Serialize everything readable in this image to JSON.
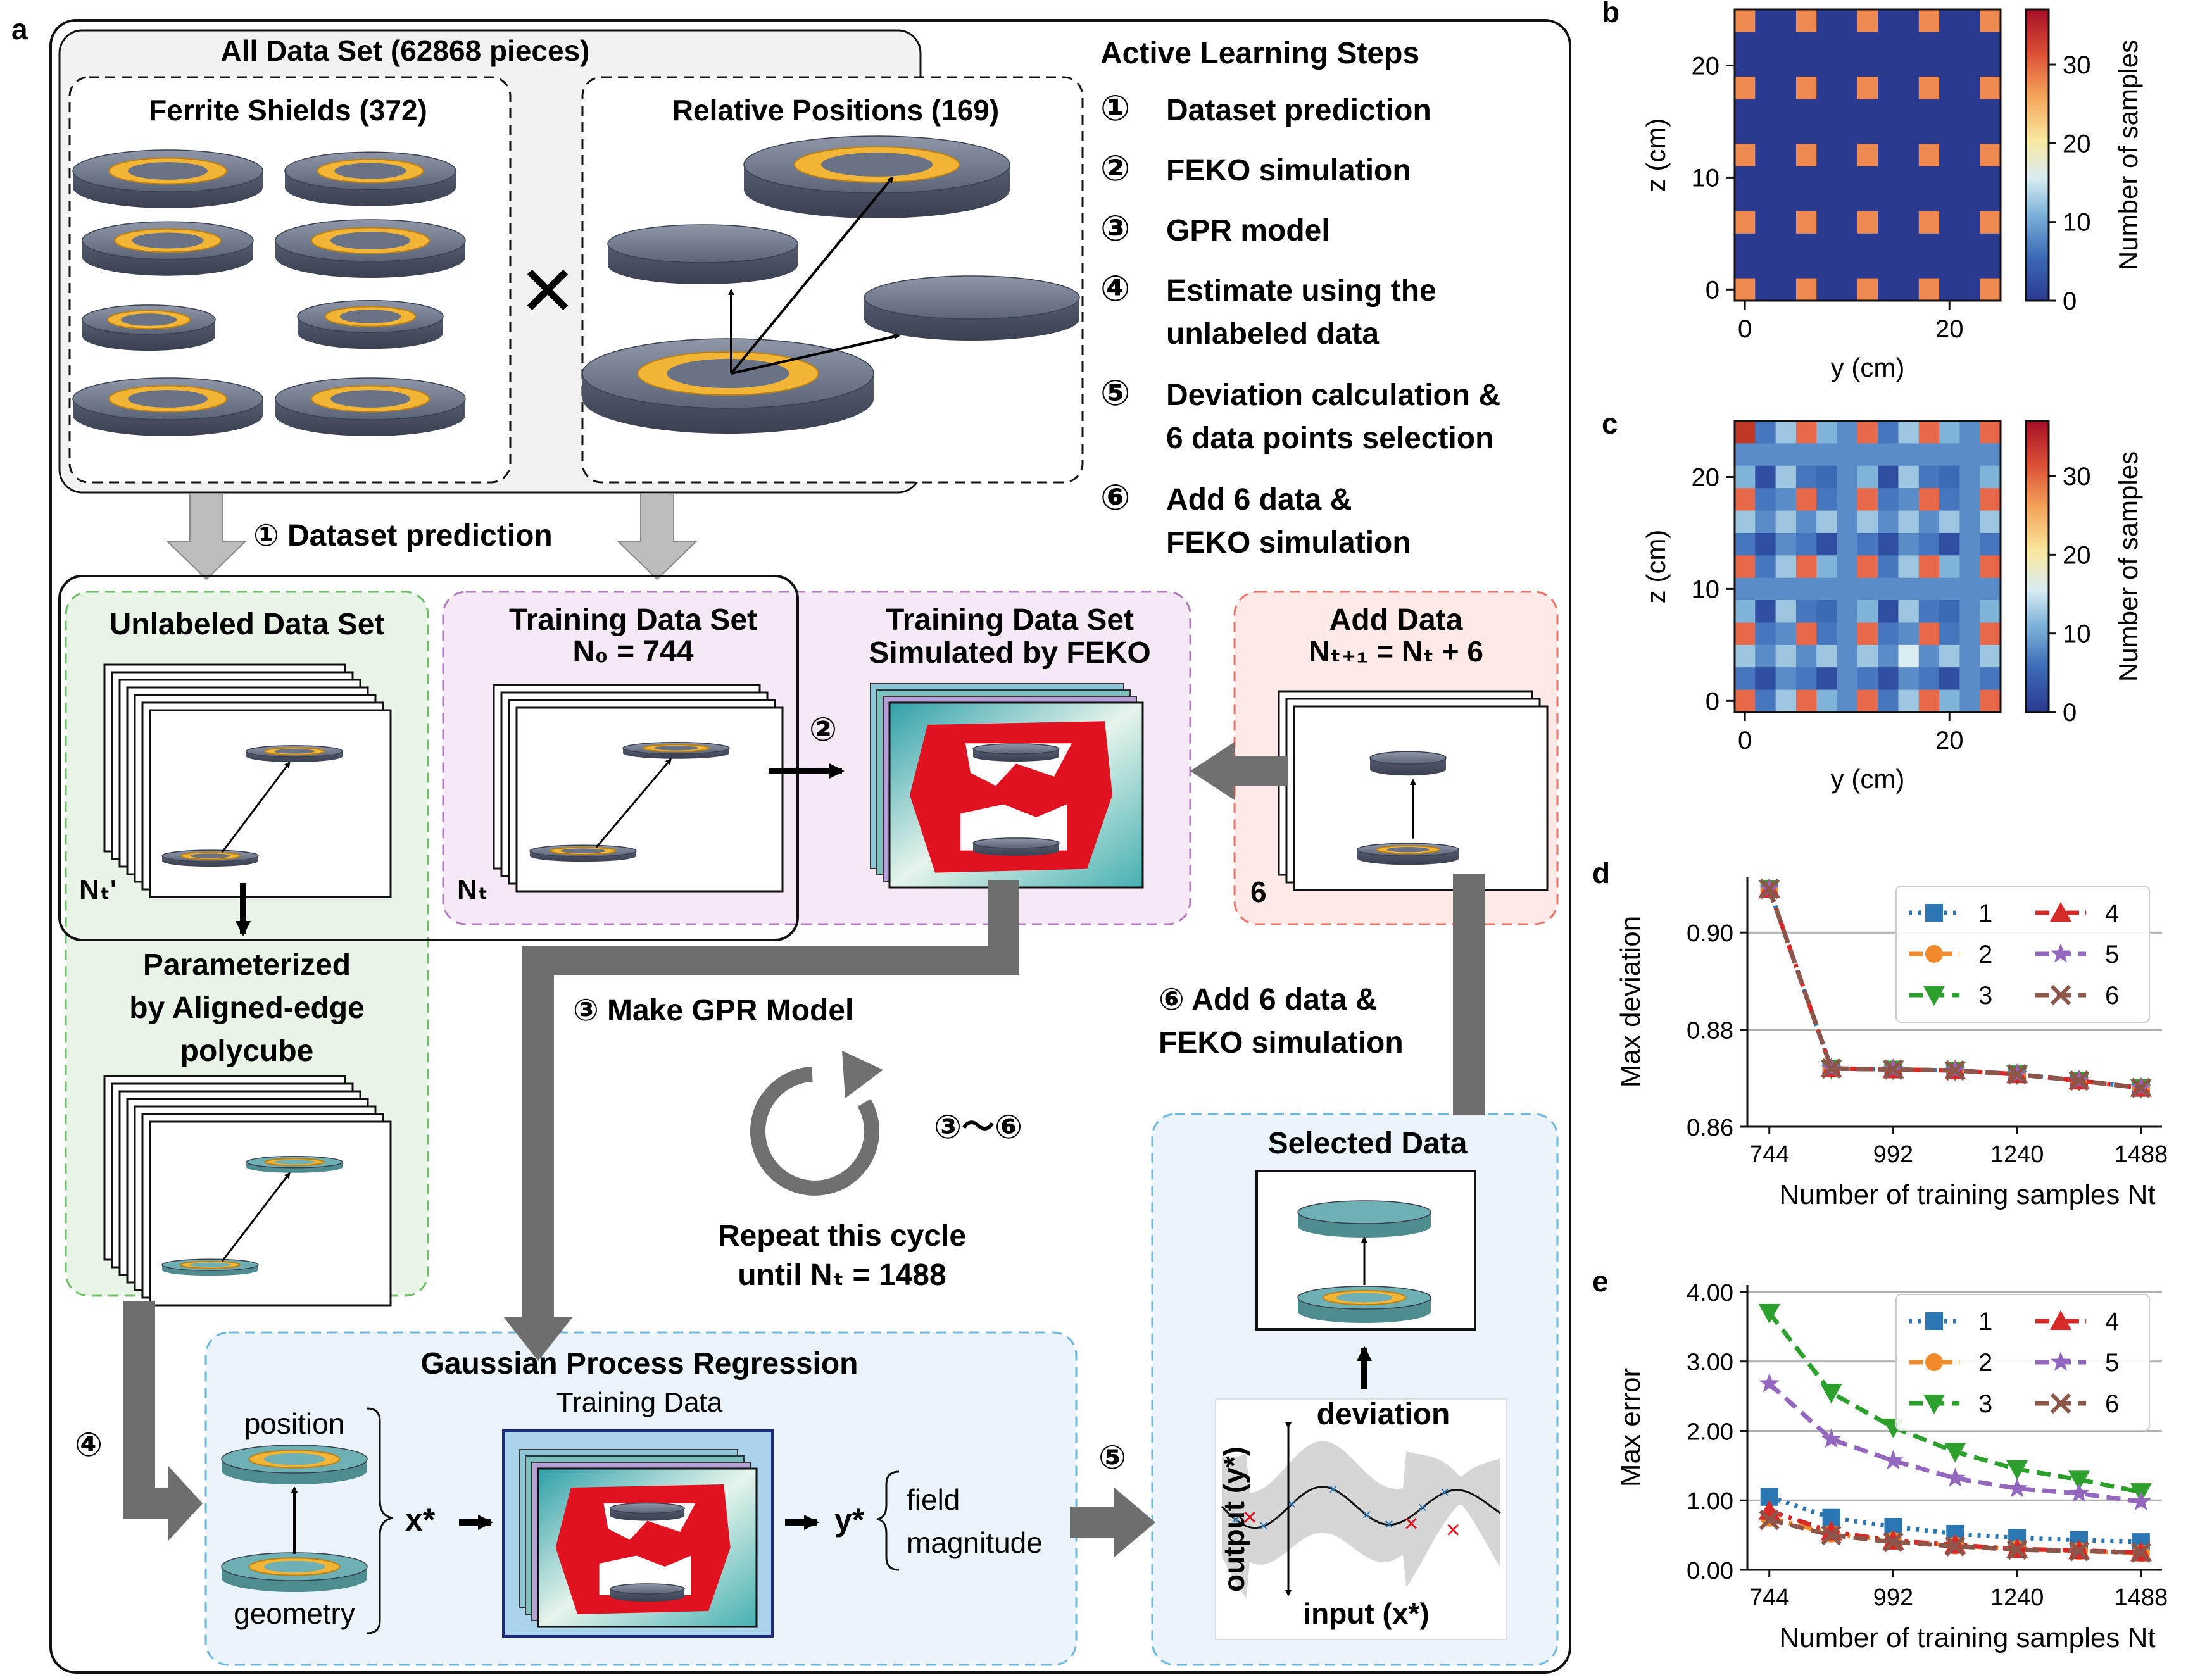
{
  "panel_letters": {
    "a": "a",
    "b": "b",
    "c": "c",
    "d": "d",
    "e": "e"
  },
  "all_data": {
    "title": "All Data Set (62868 pieces)",
    "ferrite_title": "Ferrite Shields (372)",
    "positions_title": "Relative Positions (169)",
    "times": "✕"
  },
  "steps": {
    "title": "Active Learning Steps",
    "items": [
      {
        "num": "①",
        "lines": [
          "Dataset prediction"
        ]
      },
      {
        "num": "②",
        "lines": [
          "FEKO simulation"
        ]
      },
      {
        "num": "③",
        "lines": [
          "GPR model"
        ]
      },
      {
        "num": "④",
        "lines": [
          "Estimate using the",
          "unlabeled data"
        ]
      },
      {
        "num": "⑤",
        "lines": [
          "Deviation calculation &",
          "6 data points selection"
        ]
      },
      {
        "num": "⑥",
        "lines": [
          "Add 6 data &",
          "FEKO simulation"
        ]
      }
    ]
  },
  "flow": {
    "dataset_prediction": "① Dataset prediction",
    "unlabeled_title": "Unlabeled Data Set",
    "nt_prime": "Nₜ'",
    "parameterized": [
      "Parameterized",
      "by Aligned-edge",
      "polycube"
    ],
    "training_title": "Training Data Set",
    "training_n0": "N₀ = 744",
    "nt": "Nₜ",
    "feko_title": [
      "Training Data Set",
      "Simulated by FEKO"
    ],
    "step2": "②",
    "add_title": "Add Data",
    "add_formula": "Nₜ₊₁ = Nₜ + 6",
    "six": "6",
    "make_gpr": "③ Make GPR Model",
    "cycle_label": "③～⑥",
    "repeat": [
      "Repeat this cycle",
      "until Nₜ = 1488"
    ],
    "add6": [
      "⑥ Add 6 data &",
      "FEKO simulation"
    ],
    "step4": "④",
    "step5": "⑤",
    "gpr_title": "Gaussian Process Regression",
    "training_data": "Training Data",
    "position": "position",
    "geometry": "geometry",
    "x_star": "x*",
    "y_star": "y*",
    "field_magnitude": [
      "field",
      "magnitude"
    ],
    "selected_title": "Selected Data",
    "deviation": "deviation",
    "output_label": "output (y*)",
    "input_label": "input (x*)"
  },
  "heatmaps": {
    "xlabel": "y (cm)",
    "ylabel": "z (cm)",
    "colorbar_label": "Number of samples",
    "x_ticks": [
      "0",
      "20"
    ],
    "y_ticks": [
      "0",
      "10",
      "20"
    ],
    "cbar_ticks": [
      "0",
      "10",
      "20",
      "30"
    ]
  },
  "chart_data": [
    {
      "type": "line",
      "panel": "d",
      "xlabel": "Number of training samples Nt",
      "ylabel": "Max deviation",
      "x_ticks": [
        "744",
        "992",
        "1240",
        "1488"
      ],
      "y_ticks": [
        "0.86",
        "0.88",
        "0.90"
      ],
      "xlim": [
        700,
        1530
      ],
      "ylim": [
        0.86,
        0.9115
      ],
      "x": [
        744,
        868,
        992,
        1116,
        1240,
        1364,
        1488
      ],
      "legend_placement": "top-right",
      "grid": "horizontal",
      "series": [
        {
          "name": "1",
          "color": "#2a77b4",
          "marker": "square",
          "dash": "dotted",
          "values": [
            0.909,
            0.872,
            0.8718,
            0.8716,
            0.8708,
            0.8695,
            0.868
          ]
        },
        {
          "name": "2",
          "color": "#f08a2a",
          "marker": "circle",
          "dash": "dashdot",
          "values": [
            0.909,
            0.872,
            0.8718,
            0.8716,
            0.8708,
            0.8695,
            0.868
          ]
        },
        {
          "name": "3",
          "color": "#2d9f2d",
          "marker": "triangle-down",
          "dash": "dashed",
          "values": [
            0.909,
            0.872,
            0.8718,
            0.8716,
            0.8708,
            0.8695,
            0.868
          ]
        },
        {
          "name": "4",
          "color": "#d62a28",
          "marker": "triangle-up",
          "dash": "dashdot",
          "values": [
            0.909,
            0.872,
            0.8718,
            0.8716,
            0.8708,
            0.8695,
            0.868
          ]
        },
        {
          "name": "5",
          "color": "#9367bd",
          "marker": "star",
          "dash": "dashed",
          "values": [
            0.909,
            0.872,
            0.8718,
            0.8716,
            0.8708,
            0.8695,
            0.868
          ]
        },
        {
          "name": "6",
          "color": "#8c564b",
          "marker": "x",
          "dash": "dashed",
          "values": [
            0.909,
            0.872,
            0.8718,
            0.8716,
            0.8708,
            0.8695,
            0.868
          ]
        }
      ]
    },
    {
      "type": "line",
      "panel": "e",
      "xlabel": "Number of training samples Nt",
      "ylabel": "Max error",
      "x_ticks": [
        "744",
        "992",
        "1240",
        "1488"
      ],
      "y_ticks": [
        "0.00",
        "1.00",
        "2.00",
        "3.00",
        "4.00"
      ],
      "xlim": [
        700,
        1530
      ],
      "ylim": [
        0,
        4.1
      ],
      "x": [
        744,
        868,
        992,
        1116,
        1240,
        1364,
        1488
      ],
      "legend_placement": "top-right",
      "grid": "horizontal",
      "series": [
        {
          "name": "1",
          "color": "#2a77b4",
          "marker": "square",
          "dash": "dotted",
          "values": [
            1.05,
            0.75,
            0.62,
            0.52,
            0.46,
            0.43,
            0.4
          ]
        },
        {
          "name": "2",
          "color": "#f08a2a",
          "marker": "circle",
          "dash": "dashdot",
          "values": [
            0.75,
            0.52,
            0.42,
            0.35,
            0.3,
            0.27,
            0.24
          ]
        },
        {
          "name": "3",
          "color": "#2d9f2d",
          "marker": "triangle-down",
          "dash": "dashed",
          "values": [
            3.7,
            2.55,
            2.05,
            1.7,
            1.45,
            1.3,
            1.12
          ]
        },
        {
          "name": "4",
          "color": "#d62a28",
          "marker": "triangle-up",
          "dash": "dashdot",
          "values": [
            0.85,
            0.55,
            0.42,
            0.36,
            0.3,
            0.28,
            0.25
          ]
        },
        {
          "name": "5",
          "color": "#9367bd",
          "marker": "star",
          "dash": "dashed",
          "values": [
            2.68,
            1.88,
            1.57,
            1.32,
            1.17,
            1.1,
            0.98
          ]
        },
        {
          "name": "6",
          "color": "#8c564b",
          "marker": "x",
          "dash": "dashed",
          "values": [
            0.72,
            0.5,
            0.4,
            0.34,
            0.29,
            0.27,
            0.25
          ]
        }
      ]
    }
  ]
}
